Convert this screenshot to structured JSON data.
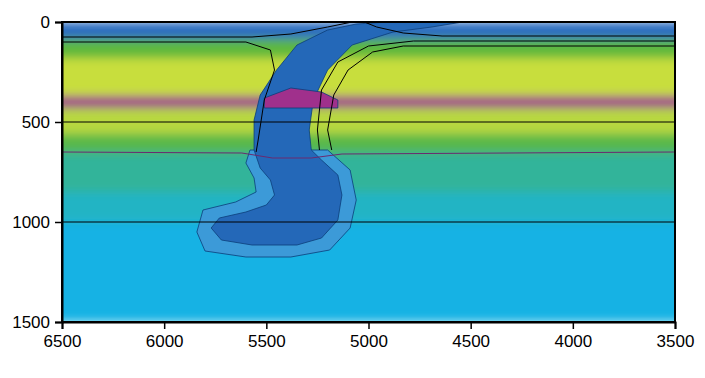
{
  "chart_data": {
    "type": "field",
    "xlim": [
      6500,
      3500
    ],
    "ylim": [
      0,
      1500
    ],
    "xticks": [
      6500,
      6000,
      5500,
      5000,
      4500,
      4000,
      3500
    ],
    "yticks": [
      0,
      500,
      1000,
      1500
    ],
    "grid": true,
    "series": [
      {
        "type": "band",
        "color": "#2b6cc0",
        "values": [
          0,
          85
        ]
      },
      {
        "type": "band",
        "color": "#5db83c",
        "values": [
          85,
          180
        ]
      },
      {
        "type": "band",
        "color": "#c8de3c",
        "values": [
          180,
          370
        ]
      },
      {
        "type": "band",
        "color": "#a0308c",
        "values": [
          370,
          430
        ]
      },
      {
        "type": "band",
        "color": "#b8d840",
        "values": [
          430,
          560
        ]
      },
      {
        "type": "band",
        "color": "#58b848",
        "values": [
          560,
          650
        ]
      },
      {
        "type": "band",
        "color": "#30b49a",
        "values": [
          650,
          850
        ]
      },
      {
        "type": "band",
        "color": "#20b4c4",
        "values": [
          850,
          1000
        ]
      },
      {
        "type": "band",
        "color": "#14b2e4",
        "values": [
          1000,
          1500
        ]
      },
      {
        "type": "area",
        "color": "#3c9ad8",
        "x": [
          5580,
          5200,
          5090,
          5060,
          5090,
          5190,
          5380,
          5600,
          5800,
          5840,
          5810,
          5650,
          5550,
          5560,
          5600
        ],
        "values": [
          640,
          640,
          740,
          890,
          1030,
          1140,
          1175,
          1175,
          1145,
          1050,
          940,
          900,
          850,
          780,
          705
        ]
      },
      {
        "type": "area",
        "color": "#2468b8",
        "x": [
          4910,
          4540,
          4690,
          4880,
          5080,
          5200,
          5270,
          5290,
          5280,
          5230,
          5150,
          5130,
          5150,
          5230,
          5350,
          5570,
          5720,
          5770,
          5730,
          5600,
          5500,
          5460,
          5480,
          5530,
          5560,
          5560,
          5530,
          5450,
          5350,
          5200,
          5060
        ],
        "values": [
          0,
          0,
          25,
          50,
          115,
          240,
          390,
          540,
          640,
          690,
          765,
          865,
          990,
          1080,
          1115,
          1115,
          1090,
          1030,
          980,
          950,
          915,
          865,
          790,
          730,
          640,
          490,
          365,
          240,
          115,
          40,
          10
        ]
      },
      {
        "type": "area",
        "color": "#a0308c",
        "x": [
          5510,
          5380,
          5230,
          5150,
          5150,
          5510
        ],
        "values": [
          380,
          330,
          350,
          390,
          430,
          430
        ]
      },
      {
        "type": "line",
        "color": "#000000",
        "x": [
          3500,
          4640,
          4830,
          4960,
          5020
        ],
        "values": [
          70,
          70,
          55,
          25,
          0
        ]
      },
      {
        "type": "line",
        "color": "#000000",
        "x": [
          3500,
          4780,
          5000,
          5150,
          5230,
          5250,
          5240
        ],
        "values": [
          95,
          95,
          120,
          200,
          340,
          540,
          640
        ]
      },
      {
        "type": "line",
        "color": "#000000",
        "x": [
          3500,
          4830,
          4980,
          5100,
          5170,
          5200,
          5180
        ],
        "values": [
          120,
          120,
          150,
          240,
          365,
          540,
          640
        ]
      },
      {
        "type": "line",
        "color": "#000000",
        "x": [
          6500,
          5570,
          5380,
          5200,
          5080
        ],
        "values": [
          75,
          75,
          60,
          25,
          0
        ]
      },
      {
        "type": "line",
        "color": "#000000",
        "x": [
          6500,
          5600,
          5480,
          5460,
          5510,
          5540,
          5550
        ],
        "values": [
          100,
          100,
          140,
          240,
          390,
          590,
          650
        ]
      },
      {
        "type": "line",
        "color": "#6a2a70",
        "x": [
          6500,
          5620,
          5470,
          5280,
          5130,
          3500
        ],
        "values": [
          650,
          655,
          680,
          680,
          660,
          650
        ]
      }
    ]
  }
}
